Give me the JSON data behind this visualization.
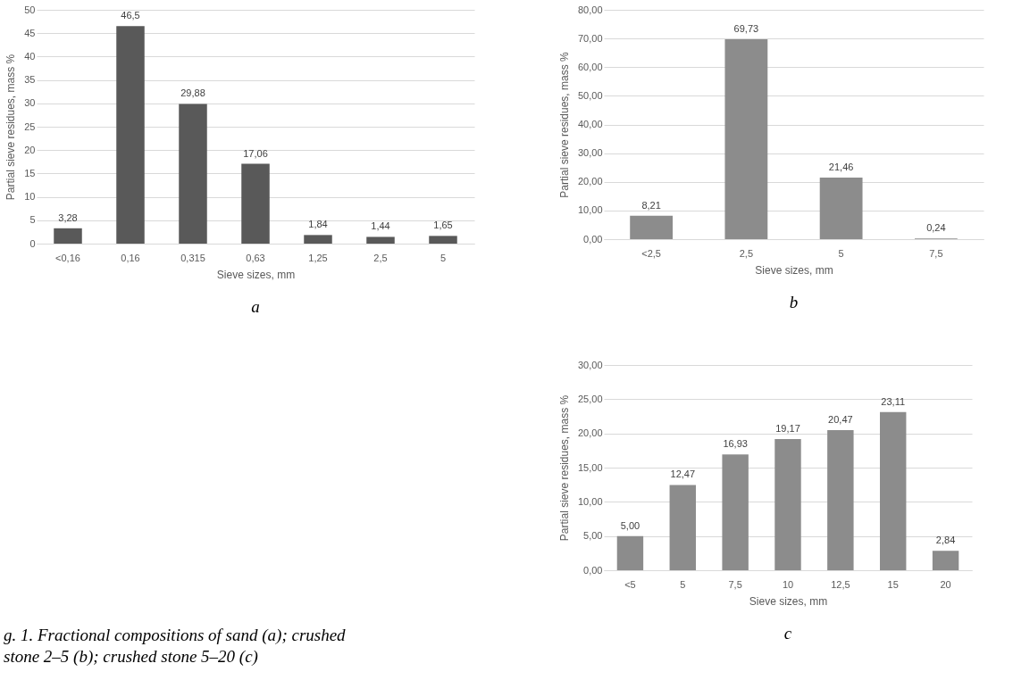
{
  "chart_data": [
    {
      "type": "bar",
      "title": "a",
      "xlabel": "Sieve sizes, mm",
      "ylabel": "Partial sieve residues, mass %",
      "categories": [
        "<0,16",
        "0,16",
        "0,315",
        "0,63",
        "1,25",
        "2,5",
        "5"
      ],
      "values": [
        3.28,
        46.5,
        29.88,
        17.06,
        1.84,
        1.44,
        1.65
      ],
      "value_labels": [
        "3,28",
        "46,5",
        "29,88",
        "17,06",
        "1,84",
        "1,44",
        "1,65"
      ],
      "color": "#595959",
      "ylim": [
        0,
        50
      ],
      "yticks": [
        0,
        5,
        10,
        15,
        20,
        25,
        30,
        35,
        40,
        45,
        50
      ],
      "grid": "y",
      "annotations": [
        "g. 1. Fractional compositions of sand (a); crushed stone 2–5 (b); crushed stone 5–20 (c)"
      ]
    },
    {
      "type": "bar",
      "title": "b",
      "xlabel": "Sieve sizes, mm",
      "ylabel": "Partial sieve residues, mass %",
      "categories": [
        "<2,5",
        "2,5",
        "5",
        "7,5"
      ],
      "values": [
        8.21,
        69.73,
        21.46,
        0.24
      ],
      "value_labels": [
        "8,21",
        "69,73",
        "21,46",
        "0,24"
      ],
      "color": "#8c8c8c",
      "ylim": [
        0,
        80
      ],
      "yticks": [
        {
          "value": 0,
          "label": "0,00"
        },
        {
          "value": 10,
          "label": "10,00"
        },
        {
          "value": 20,
          "label": "20,00"
        },
        {
          "value": 30,
          "label": "30,00"
        },
        {
          "value": 40,
          "label": "40,00"
        },
        {
          "value": 50,
          "label": "50,00"
        },
        {
          "value": 60,
          "label": "60,00"
        },
        {
          "value": 70,
          "label": "70,00"
        },
        {
          "value": 80,
          "label": "80,00"
        }
      ],
      "grid": "y"
    },
    {
      "type": "bar",
      "title": "c",
      "xlabel": "Sieve sizes, mm",
      "ylabel": "Partial sieve residues, mass %",
      "categories": [
        "<5",
        "5",
        "7,5",
        "10",
        "12,5",
        "15",
        "20"
      ],
      "values": [
        5.0,
        12.47,
        16.93,
        19.17,
        20.47,
        23.11,
        2.84
      ],
      "value_labels": [
        "5,00",
        "12,47",
        "16,93",
        "19,17",
        "20,47",
        "23,11",
        "2,84"
      ],
      "color": "#8c8c8c",
      "ylim": [
        0,
        30
      ],
      "yticks": [
        {
          "value": 0,
          "label": "0,00"
        },
        {
          "value": 5,
          "label": "5,00"
        },
        {
          "value": 10,
          "label": "10,00"
        },
        {
          "value": 15,
          "label": "15,00"
        },
        {
          "value": 20,
          "label": "20,00"
        },
        {
          "value": 25,
          "label": "25,00"
        },
        {
          "value": 30,
          "label": "30,00"
        }
      ],
      "grid": "y"
    }
  ]
}
